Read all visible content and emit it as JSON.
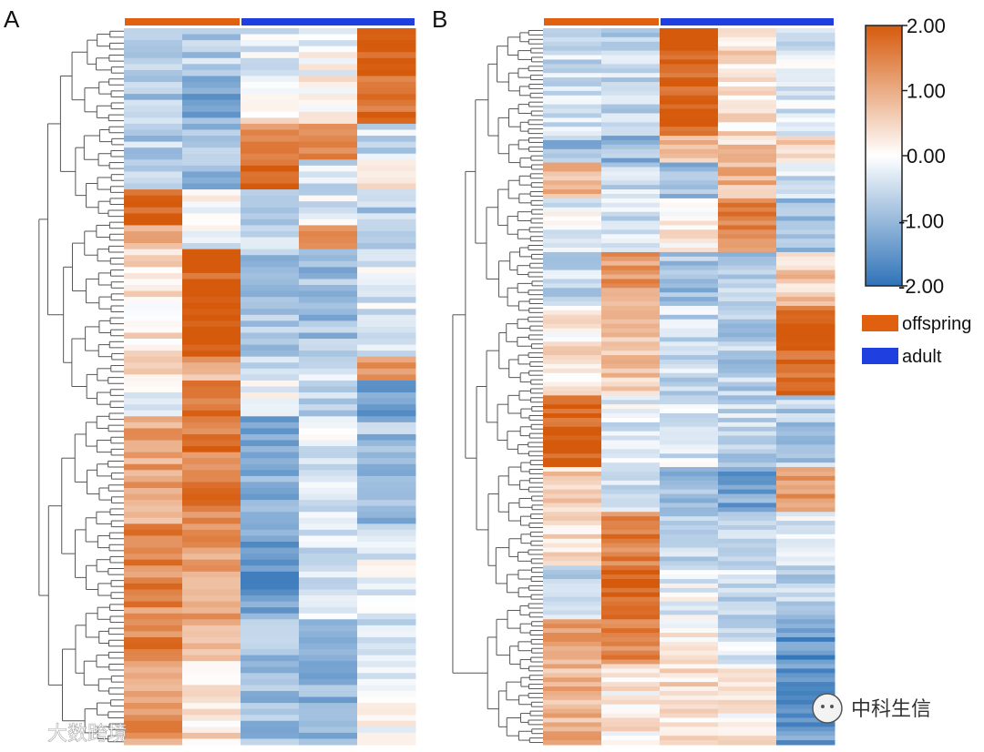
{
  "figure": {
    "panels": [
      {
        "label": "A"
      },
      {
        "label": "B"
      }
    ],
    "legend": [
      {
        "label": "offspring",
        "color": "#e0600f"
      },
      {
        "label": "adult",
        "color": "#1f3fe0"
      }
    ],
    "color_scale": {
      "ticks": [
        "2.00",
        "1.00",
        "0.00",
        "-1.00",
        "-2.00"
      ],
      "colors": {
        "high": "#d65a0c",
        "mid": "#ffffff",
        "low": "#2f73b8"
      }
    },
    "watermarks": {
      "left": "大数跨境",
      "right": "中科生信"
    }
  },
  "chart_data": [
    {
      "type": "heatmap",
      "panel": "A",
      "value_range": [
        -2,
        2
      ],
      "columns": [
        {
          "group": "offspring"
        },
        {
          "group": "offspring"
        },
        {
          "group": "adult"
        },
        {
          "group": "adult"
        },
        {
          "group": "adult"
        }
      ],
      "row_blocks": [
        {
          "rows": 8,
          "values": [
            -0.6,
            -0.7,
            -0.3,
            -0.1,
            2.0
          ]
        },
        {
          "rows": 8,
          "values": [
            -0.8,
            -1.2,
            0.2,
            0.1,
            1.7
          ]
        },
        {
          "rows": 6,
          "values": [
            -0.7,
            -0.8,
            1.3,
            1.5,
            -0.5
          ]
        },
        {
          "rows": 5,
          "values": [
            -0.4,
            -0.9,
            1.9,
            -0.4,
            0.6
          ]
        },
        {
          "rows": 6,
          "values": [
            2.0,
            0.1,
            -0.6,
            -0.3,
            -0.7
          ]
        },
        {
          "rows": 4,
          "values": [
            0.8,
            -0.2,
            -0.7,
            1.3,
            -1.0
          ]
        },
        {
          "rows": 18,
          "values": [
            0.3,
            2.0,
            -0.8,
            -0.9,
            -0.3
          ]
        },
        {
          "rows": 4,
          "values": [
            0.5,
            0.9,
            -0.4,
            -0.5,
            1.2
          ]
        },
        {
          "rows": 6,
          "values": [
            -0.3,
            1.8,
            -0.2,
            -0.6,
            -1.2
          ]
        },
        {
          "rows": 18,
          "values": [
            1.1,
            1.6,
            -1.1,
            -0.3,
            -0.9
          ]
        },
        {
          "rows": 16,
          "values": [
            1.4,
            1.2,
            -1.4,
            -0.4,
            -0.2
          ]
        },
        {
          "rows": 5,
          "values": [
            1.6,
            0.9,
            -0.4,
            -1.4,
            -0.6
          ]
        },
        {
          "rows": 16,
          "values": [
            1.2,
            0.4,
            -0.9,
            -1.1,
            -0.1
          ]
        }
      ]
    },
    {
      "type": "heatmap",
      "panel": "B",
      "value_range": [
        -2,
        2
      ],
      "columns": [
        {
          "group": "offspring"
        },
        {
          "group": "offspring"
        },
        {
          "group": "adult"
        },
        {
          "group": "adult"
        },
        {
          "group": "adult"
        }
      ],
      "row_blocks": [
        {
          "rows": 24,
          "values": [
            -0.5,
            -0.6,
            2.0,
            0.4,
            -0.3
          ]
        },
        {
          "rows": 6,
          "values": [
            -0.9,
            -1.0,
            0.9,
            0.6,
            0.5
          ]
        },
        {
          "rows": 8,
          "values": [
            0.9,
            -0.5,
            -0.9,
            0.9,
            -0.5
          ]
        },
        {
          "rows": 12,
          "values": [
            -0.2,
            -0.5,
            0.3,
            1.5,
            -1.0
          ]
        },
        {
          "rows": 12,
          "values": [
            -0.6,
            1.2,
            -0.9,
            -0.7,
            0.6
          ]
        },
        {
          "rows": 20,
          "values": [
            0.3,
            0.7,
            -0.5,
            -0.7,
            1.9
          ]
        },
        {
          "rows": 16,
          "values": [
            2.0,
            -0.3,
            -0.3,
            -0.6,
            -0.7
          ]
        },
        {
          "rows": 10,
          "values": [
            0.6,
            -0.4,
            -0.9,
            -1.3,
            1.1
          ]
        },
        {
          "rows": 12,
          "values": [
            0.3,
            1.5,
            -0.7,
            -0.4,
            -0.3
          ]
        },
        {
          "rows": 12,
          "values": [
            -0.5,
            2.0,
            -0.2,
            -0.5,
            -0.6
          ]
        },
        {
          "rows": 10,
          "values": [
            1.0,
            1.5,
            0.2,
            -0.4,
            -1.5
          ]
        },
        {
          "rows": 18,
          "values": [
            0.9,
            0.2,
            0.4,
            0.2,
            -1.4
          ]
        }
      ]
    }
  ]
}
